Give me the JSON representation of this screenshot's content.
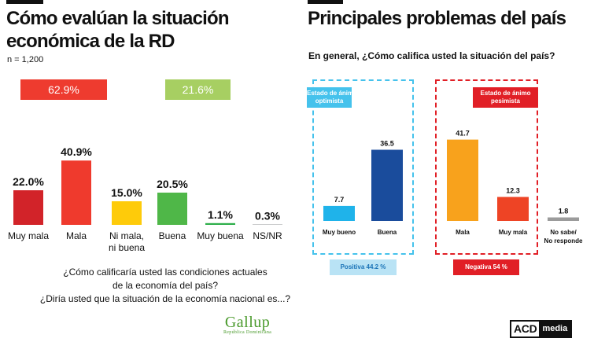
{
  "left": {
    "title_line1": "Cómo evalúan la situación",
    "title_line2": "económica de la RD",
    "sample": "n = 1,200",
    "negative_total": "62.9%",
    "positive_total": "21.6%",
    "question_line1": "¿Cómo calificaría usted las condiciones actuales",
    "question_line2": "de la economía del país?",
    "question_line3": "¿Diría usted que la situación de la economía nacional es...?",
    "colors": {
      "negative_badge": "#ee3b2f",
      "positive_badge": "#a7cf62"
    }
  },
  "right": {
    "title": "Principales problemas del país",
    "question": "En general, ¿Cómo califica usted la situación del país?",
    "optimist_label_line1": "Estado de ánimo",
    "optimist_label_line2": "optimista",
    "pessimist_label_line1": "Estado de ánimo",
    "pessimist_label_line2": "pesimista",
    "positive_total": "Positiva 44.2 %",
    "negative_total": "Negativa 54 %",
    "colors": {
      "optimist": "#45c2ec",
      "pessimist": "#e11f26"
    }
  },
  "branding": {
    "gallup": "Gallup",
    "gallup_sub": "República Dominicana",
    "acd": "ACD",
    "media": "media"
  },
  "chart_data": [
    {
      "type": "bar",
      "categories": [
        "Muy mala",
        "Mala",
        "Ni mala, ni buena",
        "Buena",
        "Muy buena",
        "NS/NR"
      ],
      "category_lines": [
        [
          "Muy mala"
        ],
        [
          "Mala"
        ],
        [
          "Ni mala,",
          "ni buena"
        ],
        [
          "Buena"
        ],
        [
          "Muy buena"
        ],
        [
          "NS/NR"
        ]
      ],
      "values": [
        22.0,
        40.9,
        15.0,
        20.5,
        1.1,
        0.3
      ],
      "value_labels": [
        "22.0%",
        "40.9%",
        "15.0%",
        "20.5%",
        "1.1%",
        "0.3%"
      ],
      "colors": [
        "#d22329",
        "#ef3a2d",
        "#fecb0a",
        "#4fb748",
        "#2eae4a",
        "#a7a9ac"
      ],
      "title": "Cómo evalúan la situación económica de la RD"
    },
    {
      "type": "bar",
      "categories": [
        "Muy bueno",
        "Buena",
        "Mala",
        "Muy mala",
        "No sabe/ No responde"
      ],
      "category_lines": [
        [
          "Muy bueno"
        ],
        [
          "Buena"
        ],
        [
          "Mala"
        ],
        [
          "Muy mala"
        ],
        [
          "No sabe/",
          "No responde"
        ]
      ],
      "values": [
        7.7,
        36.5,
        41.7,
        12.3,
        1.8
      ],
      "value_labels": [
        "7.7",
        "36.5",
        "41.7",
        "12.3",
        "1.8"
      ],
      "colors": [
        "#1fb3ea",
        "#1a4c9c",
        "#f8a21c",
        "#ee4425",
        "#9b9b9b"
      ],
      "title": "En general, ¿Cómo califica usted la situación del país?"
    }
  ]
}
